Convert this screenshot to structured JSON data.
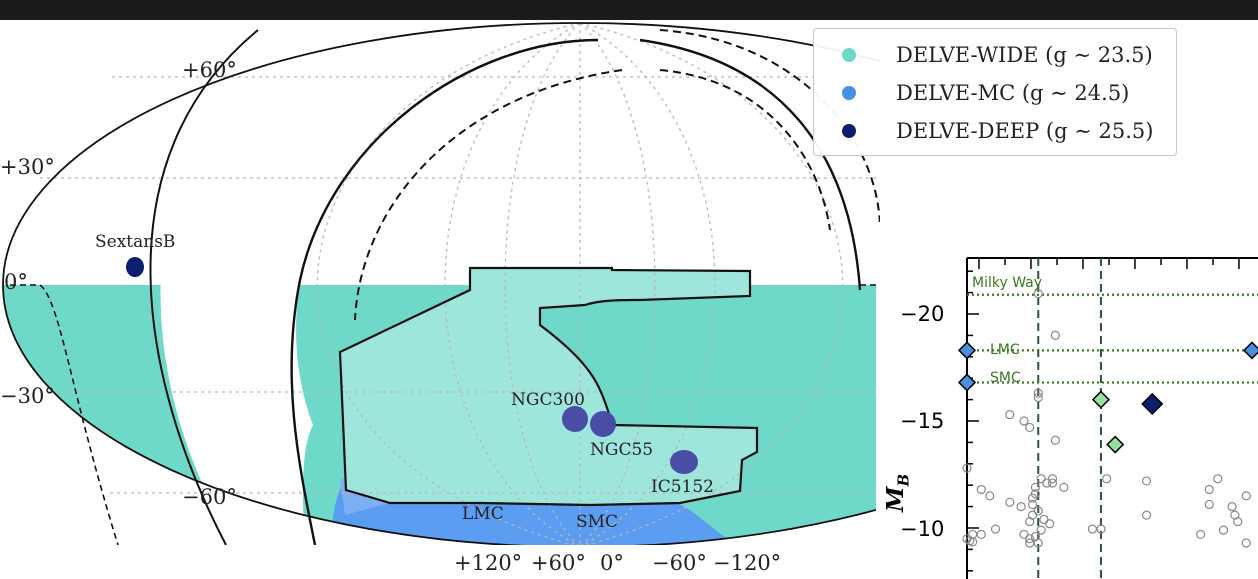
{
  "legend": [
    {
      "label": "DELVE-WIDE (g ∼ 23.5)",
      "color": "#6fd9c9"
    },
    {
      "label": "DELVE-MC (g ∼ 24.5)",
      "color": "#4a90e2"
    },
    {
      "label": "DELVE-DEEP (g ∼ 25.5)",
      "color": "#0c1f6e"
    }
  ],
  "sky_map": {
    "dec_labels": [
      "+60°",
      "+30°",
      "0°",
      "−30°",
      "−60°"
    ],
    "ra_labels": [
      "+120°",
      "+60°",
      "0°",
      "−60°",
      "−120°"
    ],
    "objects": [
      {
        "name": "SextansB"
      },
      {
        "name": "NGC300"
      },
      {
        "name": "NGC55"
      },
      {
        "name": "IC5152"
      },
      {
        "name": "LMC"
      },
      {
        "name": "SMC"
      }
    ],
    "colors": {
      "wide": "#6fd9c9",
      "wide_light": "#9ee6dc",
      "mc": "#5b9df0",
      "mc_light": "#7cb0f2",
      "deep": "#0c1f6e",
      "deep_target": "#4a4da6"
    }
  },
  "chart_data": {
    "type": "scatter",
    "ylabel": "M_B",
    "ylim": [
      -8,
      -23
    ],
    "yticks": [
      -10,
      -15,
      -20
    ],
    "ytick_labels": [
      "−10",
      "−15",
      "−20"
    ],
    "reference_lines": [
      {
        "name": "Milky Way",
        "y": -20.9
      },
      {
        "name": "LMC",
        "y": -18.3
      },
      {
        "name": "SMC",
        "y": -16.8
      }
    ],
    "vertical_lines_x": [
      0.25,
      0.47
    ],
    "series": [
      {
        "marker": "diamond",
        "color": "#4a90e2",
        "points": [
          [
            0.0,
            -18.3
          ],
          [
            0.0,
            -16.8
          ],
          [
            1.0,
            -18.3
          ]
        ]
      },
      {
        "marker": "diamond",
        "color": "#98e0a0",
        "points": [
          [
            0.47,
            -16.0
          ],
          [
            0.52,
            -13.9
          ]
        ]
      },
      {
        "marker": "diamond",
        "color": "#0c1f6e",
        "points": [
          [
            0.65,
            -15.8
          ]
        ]
      },
      {
        "marker": "circle-open",
        "color": "#888888",
        "points": [
          [
            0.25,
            -20.95
          ],
          [
            0.31,
            -19.0
          ],
          [
            0.25,
            -16.3
          ],
          [
            0.15,
            -15.3
          ],
          [
            0.2,
            -15.0
          ],
          [
            0.22,
            -14.7
          ],
          [
            0.31,
            -14.1
          ],
          [
            0.25,
            -16.1
          ],
          [
            0.0,
            -12.8
          ],
          [
            0.05,
            -11.8
          ],
          [
            0.08,
            -11.5
          ],
          [
            0.15,
            -11.2
          ],
          [
            0.19,
            -11.0
          ],
          [
            0.23,
            -11.4
          ],
          [
            0.23,
            -11.1
          ],
          [
            0.22,
            -10.3
          ],
          [
            0.24,
            -11.9
          ],
          [
            0.26,
            -12.3
          ],
          [
            0.28,
            -12.1
          ],
          [
            0.3,
            -12.3
          ],
          [
            0.3,
            -12.1
          ],
          [
            0.34,
            -11.9
          ],
          [
            0.49,
            -12.3
          ],
          [
            0.47,
            -9.95
          ],
          [
            0.44,
            -9.95
          ],
          [
            0.02,
            -9.7
          ],
          [
            0.05,
            -9.7
          ],
          [
            0.1,
            -9.95
          ],
          [
            0.2,
            -9.7
          ],
          [
            0.22,
            -9.5
          ],
          [
            0.24,
            -9.6
          ],
          [
            0.25,
            -9.3
          ],
          [
            0.26,
            -9.9
          ],
          [
            0.22,
            -9.3
          ],
          [
            0.25,
            -10.8
          ],
          [
            0.27,
            -10.4
          ],
          [
            0.29,
            -10.2
          ],
          [
            0.24,
            -11.6
          ],
          [
            0.0,
            -9.5
          ],
          [
            0.01,
            -9.4
          ],
          [
            0.23,
            -10.6
          ],
          [
            0.63,
            -10.6
          ],
          [
            0.63,
            -12.2
          ],
          [
            0.85,
            -11.8
          ],
          [
            0.85,
            -11.1
          ],
          [
            0.93,
            -11.0
          ],
          [
            0.94,
            -10.6
          ],
          [
            0.95,
            -10.3
          ],
          [
            0.9,
            -9.9
          ],
          [
            0.82,
            -9.7
          ],
          [
            0.88,
            -12.3
          ],
          [
            0.98,
            -11.5
          ],
          [
            0.02,
            -9.35
          ],
          [
            0.98,
            -9.3
          ]
        ]
      }
    ]
  }
}
